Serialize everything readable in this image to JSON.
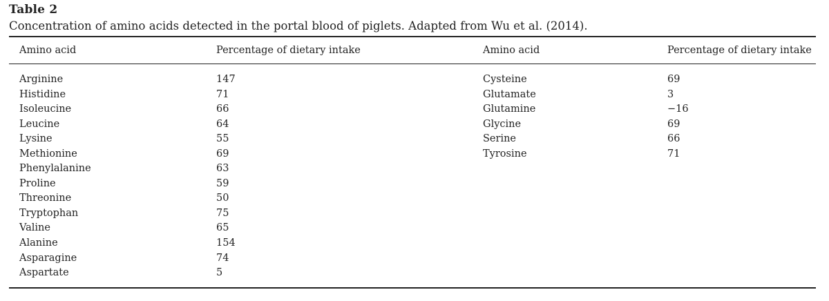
{
  "table": {
    "label": "Table 2",
    "caption": "Concentration of amino acids detected in the portal blood of piglets. Adapted from Wu et al. (2014).",
    "headers": [
      "Amino acid",
      "Percentage of dietary intake",
      "Amino acid",
      "Percentage of dietary intake"
    ],
    "left_rows": [
      {
        "amino_acid": "Arginine",
        "value": "147"
      },
      {
        "amino_acid": "Histidine",
        "value": "71"
      },
      {
        "amino_acid": "Isoleucine",
        "value": "66"
      },
      {
        "amino_acid": "Leucine",
        "value": "64"
      },
      {
        "amino_acid": "Lysine",
        "value": "55"
      },
      {
        "amino_acid": "Methionine",
        "value": "69"
      },
      {
        "amino_acid": "Phenylalanine",
        "value": "63"
      },
      {
        "amino_acid": "Proline",
        "value": "59"
      },
      {
        "amino_acid": "Threonine",
        "value": "50"
      },
      {
        "amino_acid": "Tryptophan",
        "value": "75"
      },
      {
        "amino_acid": "Valine",
        "value": "65"
      },
      {
        "amino_acid": "Alanine",
        "value": "154"
      },
      {
        "amino_acid": "Asparagine",
        "value": "74"
      },
      {
        "amino_acid": "Aspartate",
        "value": "5"
      }
    ],
    "right_rows": [
      {
        "amino_acid": "Cysteine",
        "value": "69"
      },
      {
        "amino_acid": "Glutamate",
        "value": "3"
      },
      {
        "amino_acid": "Glutamine",
        "value": "−16"
      },
      {
        "amino_acid": "Glycine",
        "value": "69"
      },
      {
        "amino_acid": "Serine",
        "value": "66"
      },
      {
        "amino_acid": "Tyrosine",
        "value": "71"
      }
    ]
  }
}
